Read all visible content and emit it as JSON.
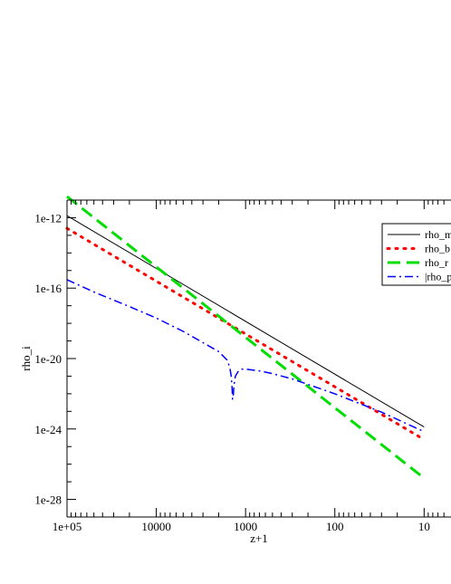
{
  "chart_data": {
    "type": "line",
    "title": "",
    "xlabel": "z+1",
    "ylabel": "rho_i",
    "x_scale": "log",
    "x_reversed": true,
    "y_scale": "log",
    "xlim": [
      100000,
      5
    ],
    "ylim": [
      1e-29,
      1e-11
    ],
    "x_ticks": [
      {
        "value": 100000,
        "label": "1e+05"
      },
      {
        "value": 10000,
        "label": "10000"
      },
      {
        "value": 1000,
        "label": "1000"
      },
      {
        "value": 100,
        "label": "100"
      },
      {
        "value": 10,
        "label": "10"
      }
    ],
    "y_ticks": [
      {
        "value": 1e-12,
        "label": "1e-12"
      },
      {
        "value": 1e-16,
        "label": "1e-16"
      },
      {
        "value": 1e-20,
        "label": "1e-20"
      },
      {
        "value": 1e-24,
        "label": "1e-24"
      },
      {
        "value": 1e-28,
        "label": "1e-28"
      }
    ],
    "grid": false,
    "legend_position": "top-right",
    "series": [
      {
        "name": "rho_m",
        "color": "#000000",
        "style": "solid",
        "x": [
          100000,
          10
        ],
        "y": [
          1.3e-12,
          1.3e-24
        ]
      },
      {
        "name": "rho_b",
        "color": "#ff0000",
        "style": "dotted",
        "x": [
          100000,
          10
        ],
        "y": [
          2.5e-13,
          2.5e-25
        ]
      },
      {
        "name": "rho_r",
        "color": "#00dd00",
        "style": "dashed",
        "x": [
          100000,
          10
        ],
        "y": [
          1.6e-11,
          1.6e-27
        ]
      },
      {
        "name": "|rho_pi|",
        "color": "#0000ff",
        "style": "dashdot",
        "x": [
          100000,
          50000,
          20000,
          10000,
          5000,
          3000,
          2000,
          1600,
          1500,
          1450,
          1420,
          1400,
          1380,
          1350,
          1300,
          1200,
          1100,
          1000,
          700,
          500,
          300,
          100,
          30,
          10
        ],
        "y": [
          3e-16,
          6e-17,
          9e-18,
          2e-18,
          3.5e-19,
          8e-20,
          2.5e-20,
          8e-21,
          3e-21,
          1e-21,
          3e-22,
          5e-23,
          5e-23,
          3e-22,
          1e-21,
          2e-21,
          2.5e-21,
          2.5e-21,
          2e-21,
          1.4e-21,
          7e-22,
          1e-22,
          9e-24,
          7e-25
        ]
      }
    ]
  }
}
